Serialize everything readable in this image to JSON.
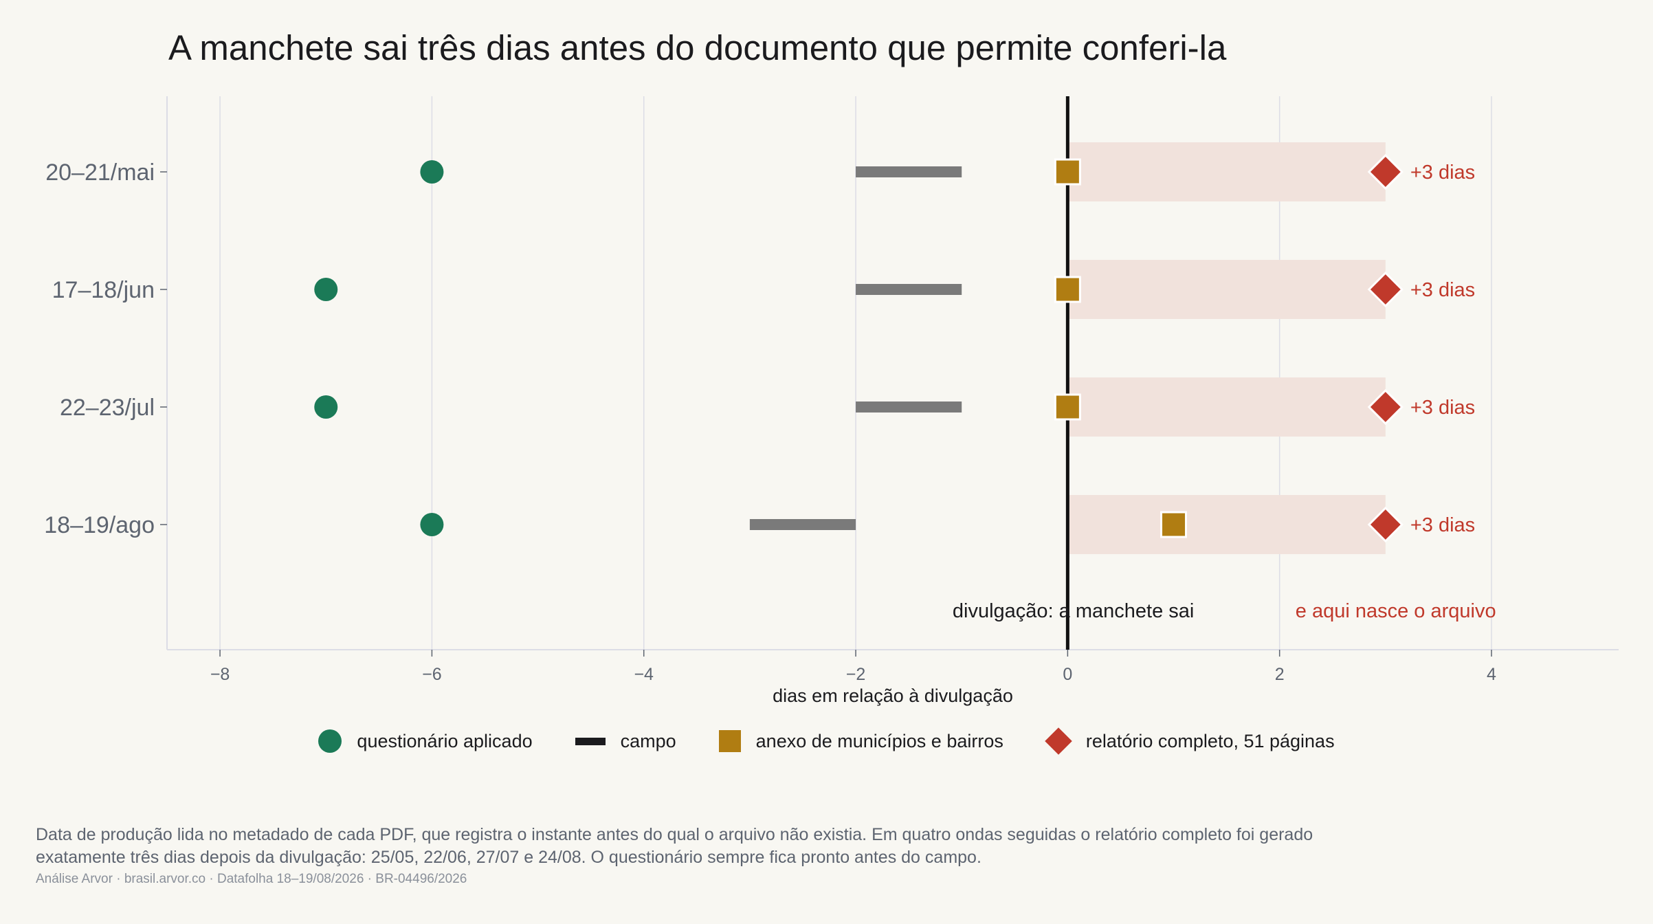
{
  "title": "A manchete sai três dias antes do documento que permite conferi-la",
  "colors": {
    "background": "#f8f7f2",
    "questionario": "#1b7a57",
    "campo_bar": "#7a7a7a",
    "campo_legend": "#1b1b1e",
    "anexo": "#b07d12",
    "relatorio": "#c0392b",
    "span_fill": "#f1e2dc",
    "divulgacao_line": "#111111",
    "grid": "#dcdde6",
    "axis_text": "#5d6470"
  },
  "chart_data": {
    "type": "scatter",
    "xlabel": "dias em relação à divulgação",
    "xlim": [
      -8.5,
      5.2
    ],
    "xticks": [
      -8,
      -6,
      -4,
      -2,
      0,
      2,
      4
    ],
    "xtick_labels": [
      "−8",
      "−6",
      "−4",
      "−2",
      "0",
      "2",
      "4"
    ],
    "grid": true,
    "categories": [
      "20–21/mai",
      "17–18/jun",
      "22–23/jul",
      "18–19/ago"
    ],
    "series": [
      {
        "name": "questionário aplicado",
        "marker": "circle",
        "values": [
          -6,
          -7,
          -7,
          -6
        ]
      },
      {
        "name": "campo",
        "marker": "bar",
        "ranges": [
          [
            -2,
            -1
          ],
          [
            -2,
            -1
          ],
          [
            -2,
            -1
          ],
          [
            -3,
            -2
          ]
        ]
      },
      {
        "name": "anexo de municípios e bairros",
        "marker": "square",
        "values": [
          0,
          0,
          0,
          1
        ]
      },
      {
        "name": "relatório completo, 51 páginas",
        "marker": "diamond",
        "values": [
          3,
          3,
          3,
          3
        ]
      }
    ],
    "gap_labels": [
      "+3 dias",
      "+3 dias",
      "+3 dias",
      "+3 dias"
    ],
    "reference_line": {
      "x": 0
    },
    "annotations": {
      "divulgacao": "divulgação: a manchete sai",
      "arquivo": "e aqui nasce o arquivo"
    },
    "legend_position": "bottom"
  },
  "footnote": "Data de produção lida no metadado de cada PDF, que registra o instante antes do qual o arquivo não existia. Em quatro ondas seguidas o relatório completo foi gerado exatamente três dias depois da divulgação: 25/05, 22/06, 27/07 e 24/08. O questionário sempre fica pronto antes do campo.",
  "source": "Análise Arvor · brasil.arvor.co · Datafolha 18–19/08/2026 · BR-04496/2026"
}
